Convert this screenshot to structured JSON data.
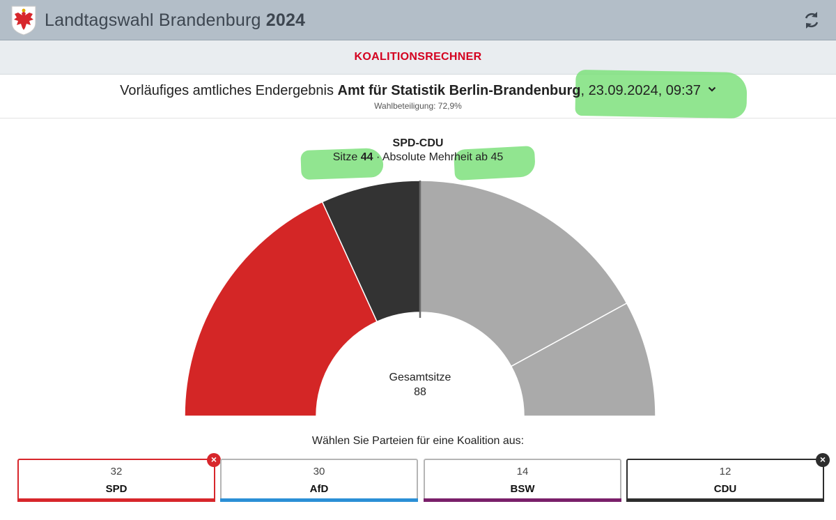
{
  "header": {
    "title_prefix": "Landtagswahl Brandenburg",
    "title_year": "2024",
    "crest_icon": "brandenburg-eagle-icon",
    "refresh_icon": "refresh-icon"
  },
  "subnav": {
    "label": "KOALITIONSRECHNER"
  },
  "result": {
    "prefix": "Vorläufiges amtliches Endergebnis",
    "source": "Amt für Statistik Berlin-Brandenburg",
    "datetime": "23.09.2024, 09:37",
    "turnout": "Wahlbeteiligung: 72,9%"
  },
  "coalition": {
    "name": "SPD-CDU",
    "seats_label": "Sitze",
    "seats_value": "44",
    "separator": " · ",
    "majority": "Absolute Mehrheit ab 45"
  },
  "total": {
    "label": "Gesamtsitze",
    "value": "88"
  },
  "choose_label": "Wählen Sie Parteien für eine Koalition aus:",
  "parties": [
    {
      "name": "SPD",
      "seats": "32",
      "color": "#d7262b",
      "selected": true
    },
    {
      "name": "AfD",
      "seats": "30",
      "color": "#2b8fd6",
      "selected": false
    },
    {
      "name": "BSW",
      "seats": "14",
      "color": "#7a1f6a",
      "selected": false
    },
    {
      "name": "CDU",
      "seats": "12",
      "color": "#2d2d2d",
      "selected": true
    }
  ],
  "chart_data": {
    "type": "pie",
    "style": "half-donut",
    "total": 88,
    "slices": [
      {
        "label": "SPD",
        "value": 32,
        "color": "#d42626"
      },
      {
        "label": "CDU",
        "value": 12,
        "color": "#333333"
      },
      {
        "label": "rest",
        "value": 30,
        "color": "#aaaaaa"
      },
      {
        "label": "rest",
        "value": 14,
        "color": "#aaaaaa"
      }
    ]
  }
}
